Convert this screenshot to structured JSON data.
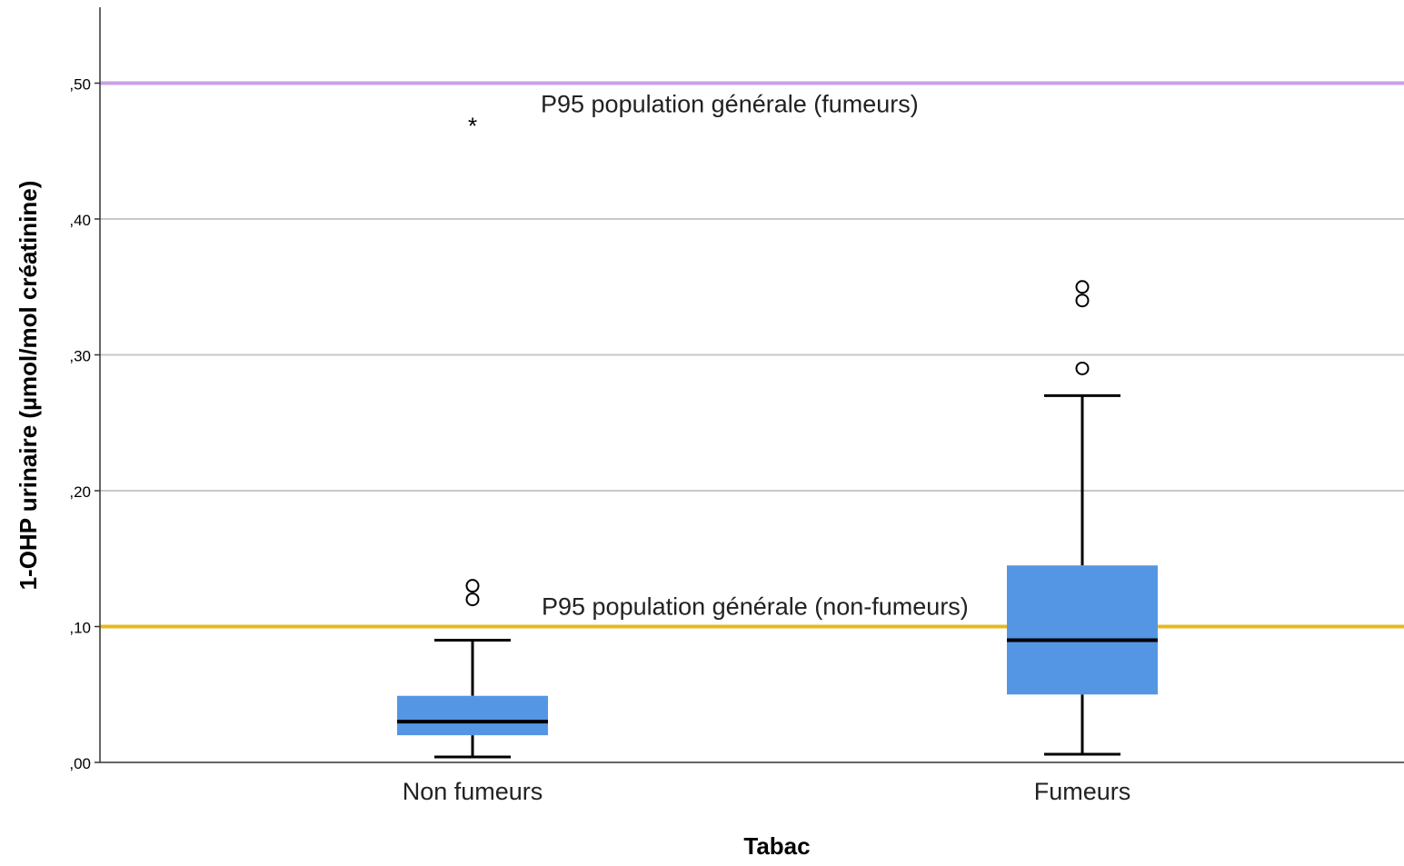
{
  "chart_data": {
    "type": "box",
    "xlabel": "Tabac",
    "ylabel": "1-OHP urinaire (µmol/mol créatinine)",
    "ylim": [
      0,
      0.55
    ],
    "yticks": [
      {
        "value": 0.0,
        "label": ",00"
      },
      {
        "value": 0.1,
        "label": ",10"
      },
      {
        "value": 0.2,
        "label": ",20"
      },
      {
        "value": 0.3,
        "label": ",30"
      },
      {
        "value": 0.4,
        "label": ",40"
      },
      {
        "value": 0.5,
        "label": ",50"
      }
    ],
    "grid": true,
    "categories": [
      "Non fumeurs",
      "Fumeurs"
    ],
    "boxes": [
      {
        "category": "Non fumeurs",
        "whisker_low": 0.004,
        "q1": 0.02,
        "median": 0.03,
        "q3": 0.049,
        "whisker_high": 0.09,
        "outliers": [
          0.12,
          0.13
        ],
        "extremes": [
          0.47
        ]
      },
      {
        "category": "Fumeurs",
        "whisker_low": 0.006,
        "q1": 0.05,
        "median": 0.09,
        "q3": 0.145,
        "whisker_high": 0.27,
        "outliers": [
          0.29,
          0.34,
          0.35
        ],
        "extremes": []
      }
    ],
    "reference_lines": [
      {
        "value": 0.5,
        "label": "P95 population générale (fumeurs)",
        "color": "#c9a0e8"
      },
      {
        "value": 0.1,
        "label": "P95 population générale (non-fumeurs)",
        "color": "#e8b820"
      }
    ],
    "colors": {
      "box_fill": "#5496e3",
      "median": "#000000",
      "whisker": "#000000",
      "grid": "#c8c8c8",
      "axis": "#333333"
    }
  }
}
